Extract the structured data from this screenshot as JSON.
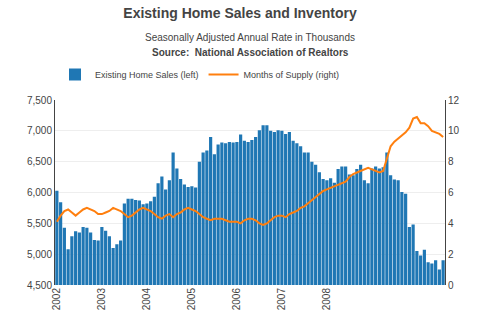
{
  "chart_data": {
    "type": "bar",
    "title": "Existing Home Sales and Inventory",
    "subtitle": "Seasonally Adjusted Annual Rate in Thousands",
    "annotations": [
      "Source:  National Association of Realtors"
    ],
    "categories": [
      "2002",
      null,
      null,
      null,
      null,
      null,
      null,
      null,
      null,
      null,
      null,
      null,
      "2003",
      null,
      null,
      null,
      null,
      null,
      null,
      null,
      null,
      null,
      null,
      null,
      "2004",
      null,
      null,
      null,
      null,
      null,
      null,
      null,
      null,
      null,
      null,
      null,
      "2005",
      null,
      null,
      null,
      null,
      null,
      null,
      null,
      null,
      null,
      null,
      null,
      "2006",
      null,
      null,
      null,
      null,
      null,
      null,
      null,
      null,
      null,
      null,
      null,
      "2007",
      null,
      null,
      null,
      null,
      null,
      null,
      null,
      null,
      null,
      null,
      null,
      "2008",
      null,
      null,
      null,
      null,
      null,
      null,
      null,
      null,
      null,
      null,
      null,
      null,
      null,
      null,
      null,
      null,
      null,
      null,
      null,
      null,
      null,
      null,
      null,
      null,
      null,
      null,
      null,
      null,
      null,
      null,
      null
    ],
    "series": [
      {
        "name": "Existing Home Sales (left)",
        "type": "bar",
        "values": [
          6030,
          5840,
          5430,
          5080,
          5290,
          5370,
          5350,
          5440,
          5430,
          5350,
          5230,
          5220,
          5440,
          5380,
          5290,
          5100,
          5160,
          5220,
          5820,
          5900,
          5900,
          5880,
          5870,
          5810,
          5820,
          5860,
          5930,
          6150,
          6260,
          6050,
          6200,
          6650,
          6390,
          6220,
          6130,
          6090,
          6100,
          6080,
          6500,
          6650,
          6680,
          6900,
          6620,
          6780,
          6810,
          6800,
          6820,
          6810,
          6820,
          6940,
          6840,
          6820,
          6850,
          6900,
          7010,
          7090,
          7090,
          7000,
          6980,
          7010,
          7000,
          6950,
          6980,
          6840,
          6800,
          6750,
          6650,
          6650,
          6500,
          6450,
          6330,
          6220,
          6200,
          6230,
          6160,
          6380,
          6420,
          6420,
          6290,
          6280,
          6380,
          6450,
          6200,
          6150,
          6390,
          6420,
          6390,
          6410,
          6650,
          6280,
          6210,
          6200,
          6010,
          5980,
          5440,
          5480,
          5050,
          4980,
          5070,
          4870,
          4850,
          4900,
          4750,
          4900
        ]
      },
      {
        "name": "Months of Supply (right)",
        "type": "line",
        "axis": "y2",
        "values": [
          4.1,
          4.5,
          4.8,
          4.9,
          4.7,
          4.5,
          4.7,
          4.9,
          5.0,
          4.9,
          4.8,
          4.6,
          4.6,
          4.7,
          4.8,
          5.0,
          4.9,
          4.8,
          4.6,
          4.4,
          4.5,
          4.7,
          4.9,
          5.0,
          4.9,
          4.8,
          4.6,
          4.4,
          4.3,
          4.5,
          4.6,
          4.4,
          4.6,
          4.7,
          4.9,
          5.0,
          4.9,
          4.8,
          4.6,
          4.4,
          4.3,
          4.2,
          4.3,
          4.3,
          4.3,
          4.2,
          4.1,
          4.1,
          4.1,
          4.0,
          4.2,
          4.3,
          4.3,
          4.2,
          4.0,
          3.9,
          4.0,
          4.2,
          4.4,
          4.5,
          4.5,
          4.4,
          4.6,
          4.7,
          4.8,
          5.0,
          5.1,
          5.3,
          5.5,
          5.7,
          5.9,
          6.1,
          6.2,
          6.3,
          6.4,
          6.5,
          6.6,
          6.7,
          7.0,
          7.2,
          7.3,
          7.4,
          7.5,
          7.6,
          7.5,
          7.4,
          7.3,
          7.4,
          8.2,
          9.0,
          9.3,
          9.5,
          9.7,
          9.9,
          10.2,
          10.8,
          10.9,
          10.5,
          10.5,
          10.3,
          10.0,
          9.9,
          9.8,
          9.6
        ]
      }
    ],
    "ylim": [
      4500,
      7500
    ],
    "yticks": [
      {
        "value": 4500,
        "label": "4,500"
      },
      {
        "value": 5000,
        "label": "5,000"
      },
      {
        "value": 5500,
        "label": "5,500"
      },
      {
        "value": 6000,
        "label": "6,000"
      },
      {
        "value": 6500,
        "label": "6,500"
      },
      {
        "value": 7000,
        "label": "7,000"
      },
      {
        "value": 7500,
        "label": "7,500"
      }
    ],
    "y2lim": [
      0,
      12
    ],
    "y2ticks": [
      0,
      2,
      4,
      6,
      8,
      10,
      12
    ],
    "grid": true,
    "legend": "upper left"
  }
}
